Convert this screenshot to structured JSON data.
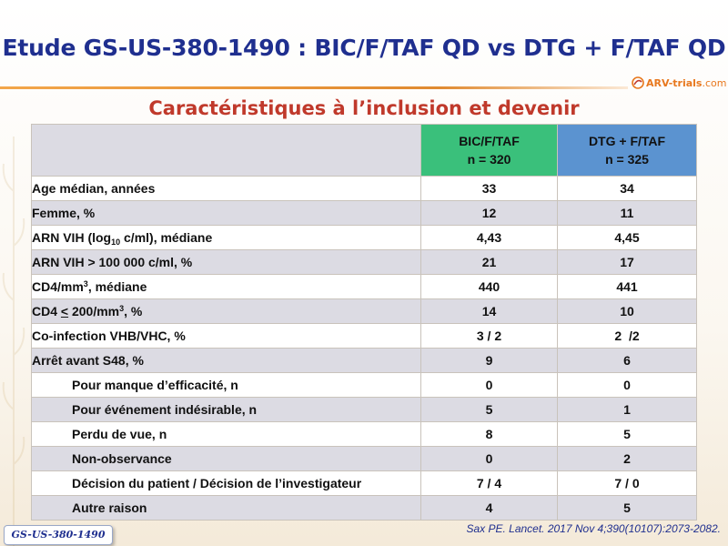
{
  "header": {
    "title": "Etude GS-US-380-1490 : BIC/F/TAF QD vs DTG + F/TAF QD",
    "logo_text": "ARV-trials",
    "logo_suffix": ".com"
  },
  "section": {
    "subtitle": "Caractéristiques à l’inclusion et devenir"
  },
  "table": {
    "columns": [
      {
        "line1": "BIC/F/TAF",
        "line2": "n = 320",
        "color": "#3ac07b"
      },
      {
        "line1": "DTG + F/TAF",
        "line2": "n = 325",
        "color": "#5b93d0"
      }
    ],
    "rows": [
      {
        "label": "Age médian, années",
        "v1": "33",
        "v2": "34"
      },
      {
        "label": "Femme, %",
        "v1": "12",
        "v2": "11"
      },
      {
        "label_a": "ARN VIH (log",
        "label_sub": "10",
        "label_b": " c/ml), médiane",
        "v1": "4,43",
        "v2": "4,45"
      },
      {
        "label": "ARN VIH > 100 000 c/ml, %",
        "v1": "21",
        "v2": "17"
      },
      {
        "label_a": "CD4/mm",
        "label_sup": "3",
        "label_b": ", médiane",
        "v1": "440",
        "v2": "441"
      },
      {
        "label_a": "CD4 ",
        "label_u": "<",
        "label_c": " 200/mm",
        "label_sup": "3",
        "label_b": ", %",
        "v1": "14",
        "v2": "10"
      },
      {
        "label": "Co-infection VHB/VHC, %",
        "v1": "3 / 2",
        "v2": "2  /2"
      },
      {
        "label": "Arrêt avant S48, %",
        "v1": "9",
        "v2": "6"
      },
      {
        "label": "Pour manque d’efficacité, n",
        "v1": "0",
        "v2": "0"
      },
      {
        "label": "Pour événement indésirable, n",
        "v1": "5",
        "v2": "1"
      },
      {
        "label": "Perdu de vue, n",
        "v1": "8",
        "v2": "5"
      },
      {
        "label": "Non-observance",
        "v1": "0",
        "v2": "2"
      },
      {
        "label": "Décision du patient / Décision de l’investigateur",
        "v1": "7 / 4",
        "v2": "7 / 0"
      },
      {
        "label": "Autre raison",
        "v1": "4",
        "v2": "5"
      }
    ]
  },
  "footer": {
    "citation": "Sax PE. Lancet. 2017 Nov 4;390(10107):2073-2082.",
    "badge": "GS-US-380-1490"
  }
}
